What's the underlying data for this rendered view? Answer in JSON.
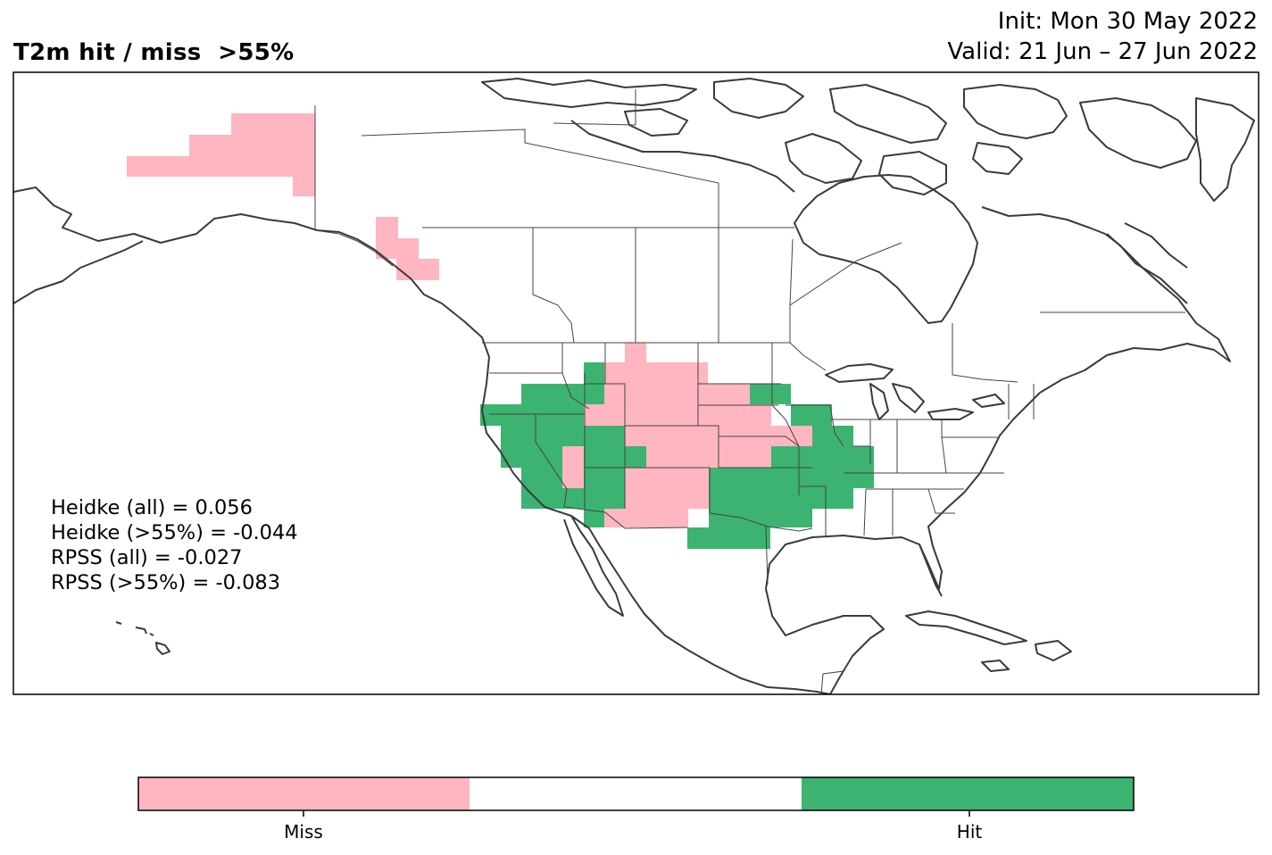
{
  "header": {
    "title": "T2m hit / miss  >55%",
    "init": "Init: Mon 30 May 2022",
    "valid": "Valid: 21 Jun – 27 Jun 2022"
  },
  "stats": [
    "Heidke (all) = 0.056",
    "Heidke (>55%) = -0.044",
    "RPSS (all) = -0.027",
    "RPSS (>55%) = -0.083"
  ],
  "legend": {
    "categories": [
      {
        "label": "Miss",
        "color": "#ffb6c1"
      },
      {
        "label": "",
        "color": "#ffffff"
      },
      {
        "label": "Hit",
        "color": "#3cb371"
      }
    ]
  },
  "colors": {
    "miss": "#ffb6c1",
    "hit": "#3cb371",
    "coast": "#3a3a3a"
  }
}
